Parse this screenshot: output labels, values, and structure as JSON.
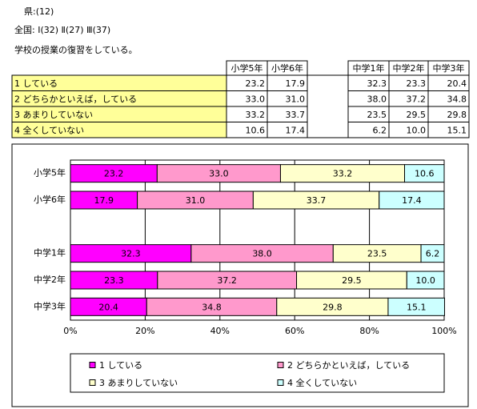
{
  "header": {
    "prefecture": "県:(12)",
    "national": "全国: Ⅰ(32) Ⅱ(27) Ⅲ(37)",
    "question": "学校の授業の復習をしている。"
  },
  "table": {
    "columns": [
      "小学5年",
      "小学6年",
      "中学1年",
      "中学2年",
      "中学3年"
    ],
    "rows": [
      {
        "label": "1 している",
        "cells": [
          "23.2",
          "17.9",
          "32.3",
          "23.3",
          "20.4"
        ]
      },
      {
        "label": "2 どちらかといえば，している",
        "cells": [
          "33.0",
          "31.0",
          "38.0",
          "37.2",
          "34.8"
        ]
      },
      {
        "label": "3 あまりしていない",
        "cells": [
          "33.2",
          "33.7",
          "23.5",
          "29.5",
          "29.8"
        ]
      },
      {
        "label": "4 全くしていない",
        "cells": [
          "10.6",
          "17.4",
          "6.2",
          "10.0",
          "15.1"
        ]
      }
    ]
  },
  "chart_data": {
    "type": "stacked-bar-horizontal",
    "categories": [
      "小学5年",
      "小学6年",
      null,
      "中学1年",
      "中学2年",
      "中学3年"
    ],
    "series": [
      {
        "name": "1 している",
        "color": "#ff00ff",
        "values": [
          23.2,
          17.9,
          null,
          32.3,
          23.3,
          20.4
        ],
        "value_labels": [
          "23.2",
          "17.9",
          null,
          "32.3",
          "23.3",
          "20.4"
        ]
      },
      {
        "name": "2 どちらかといえば，している",
        "color": "#ff99cc",
        "values": [
          33.0,
          31.0,
          null,
          38.0,
          37.2,
          34.8
        ],
        "value_labels": [
          "33.0",
          "31.0",
          null,
          "38.0",
          "37.2",
          "34.8"
        ]
      },
      {
        "name": "3 あまりしていない",
        "color": "#ffffcc",
        "values": [
          33.2,
          33.7,
          null,
          23.5,
          29.5,
          29.8
        ],
        "value_labels": [
          "33.2",
          "33.7",
          null,
          "23.5",
          "29.5",
          "29.8"
        ]
      },
      {
        "name": "4 全くしていない",
        "color": "#ccffff",
        "values": [
          10.6,
          17.4,
          null,
          6.2,
          10.0,
          15.1
        ],
        "value_labels": [
          "10.6",
          "17.4",
          null,
          "6.2",
          "10.0",
          "15.1"
        ]
      }
    ],
    "xlim": [
      0,
      100
    ],
    "xticks": [
      {
        "value": 0,
        "label": "0%"
      },
      {
        "value": 20,
        "label": "20%"
      },
      {
        "value": 40,
        "label": "40%"
      },
      {
        "value": 60,
        "label": "60%"
      },
      {
        "value": 80,
        "label": "80%"
      },
      {
        "value": 100,
        "label": "100%"
      }
    ],
    "grid": true,
    "legend": "bottom"
  }
}
